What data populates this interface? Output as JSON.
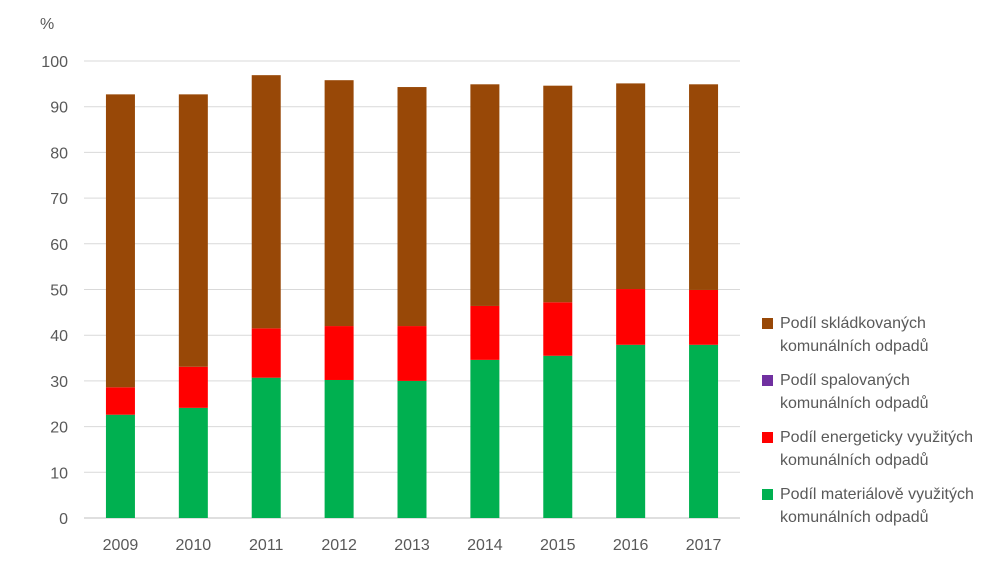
{
  "chart_data": {
    "type": "bar",
    "stacked": true,
    "unit_label": "%",
    "categories": [
      "2009",
      "2010",
      "2011",
      "2012",
      "2013",
      "2014",
      "2015",
      "2016",
      "2017"
    ],
    "ylim": [
      0,
      100
    ],
    "yticks": [
      0,
      10,
      20,
      30,
      40,
      50,
      60,
      70,
      80,
      90,
      100
    ],
    "grid": true,
    "legend_position": "right",
    "series": [
      {
        "name": "Podíl materiálově využitých komunálních odpadů",
        "color": "#00b050",
        "values": [
          22.6,
          24.1,
          30.7,
          30.2,
          30.0,
          34.6,
          35.5,
          37.9,
          37.9
        ]
      },
      {
        "name": "Podíl energeticky využitých komunálních odpadů",
        "color": "#ff0000",
        "values": [
          6.0,
          9.0,
          10.8,
          11.8,
          12.0,
          11.8,
          11.7,
          12.2,
          12.0
        ]
      },
      {
        "name": "Podíl spalovaných komunálních odpadů",
        "color": "#7030a0",
        "values": [
          0,
          0,
          0,
          0,
          0,
          0,
          0,
          0,
          0
        ]
      },
      {
        "name": "Podíl skládkovaných komunálních odpadů",
        "color": "#984807",
        "values": [
          64.1,
          59.6,
          55.4,
          53.8,
          52.3,
          48.5,
          47.4,
          45.0,
          45.0
        ]
      }
    ],
    "legend": [
      {
        "line1": "Podíl skládkovaných",
        "line2": "komunálních odpadů",
        "color": "#984807"
      },
      {
        "line1": "Podíl spalovaných",
        "line2": "komunálních odpadů",
        "color": "#7030a0"
      },
      {
        "line1": "Podíl energeticky využitých",
        "line2": "komunálních odpadů",
        "color": "#ff0000"
      },
      {
        "line1": "Podíl materiálově využitých",
        "line2": "komunálních odpadů",
        "color": "#00b050"
      }
    ]
  }
}
